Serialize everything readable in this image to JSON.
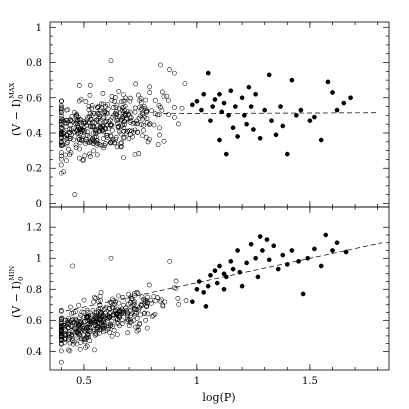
{
  "chart_data": [
    {
      "type": "scatter",
      "panel": "top",
      "ylabel_main": "(V − I)",
      "ylabel_sub": "0",
      "ylabel_sup": "MAX",
      "xlim": [
        0.35,
        1.85
      ],
      "ylim": [
        -0.02,
        1.03
      ],
      "yticks": [
        0,
        0.2,
        0.4,
        0.6,
        0.8,
        1
      ],
      "yticklabels": [
        "0",
        "0.2",
        "0.4",
        "0.6",
        "0.8",
        "1"
      ],
      "xticks": [
        0.5,
        1,
        1.5
      ],
      "fit_line": {
        "x": [
          0.85,
          1.8
        ],
        "y": [
          0.51,
          0.515
        ]
      },
      "series": [
        {
          "marker": "open-circle",
          "cluster": {
            "x_mean": 0.57,
            "x_sd": 0.13,
            "x_min": 0.4,
            "x_max": 0.98,
            "y_base": 0.4,
            "y_slope": 0.25,
            "y_sd": 0.08,
            "count": 420,
            "seed": 11
          },
          "extra_points": [
            {
              "x": 0.62,
              "y": 0.81
            },
            {
              "x": 0.46,
              "y": 0.05
            },
            {
              "x": 0.41,
              "y": 0.18
            },
            {
              "x": 0.48,
              "y": 0.67
            },
            {
              "x": 0.9,
              "y": 0.74
            }
          ]
        },
        {
          "marker": "filled-circle",
          "points": [
            {
              "x": 0.98,
              "y": 0.56
            },
            {
              "x": 1.0,
              "y": 0.58
            },
            {
              "x": 1.02,
              "y": 0.53
            },
            {
              "x": 1.03,
              "y": 0.62
            },
            {
              "x": 1.05,
              "y": 0.74
            },
            {
              "x": 1.06,
              "y": 0.47
            },
            {
              "x": 1.07,
              "y": 0.55
            },
            {
              "x": 1.08,
              "y": 0.59
            },
            {
              "x": 1.1,
              "y": 0.36
            },
            {
              "x": 1.11,
              "y": 0.52
            },
            {
              "x": 1.12,
              "y": 0.57
            },
            {
              "x": 1.13,
              "y": 0.28
            },
            {
              "x": 1.14,
              "y": 0.5
            },
            {
              "x": 1.15,
              "y": 0.64
            },
            {
              "x": 1.16,
              "y": 0.43
            },
            {
              "x": 1.17,
              "y": 0.55
            },
            {
              "x": 1.18,
              "y": 0.38
            },
            {
              "x": 1.2,
              "y": 0.6
            },
            {
              "x": 1.21,
              "y": 0.5
            },
            {
              "x": 1.22,
              "y": 0.45
            },
            {
              "x": 1.24,
              "y": 0.55
            },
            {
              "x": 1.25,
              "y": 0.42
            },
            {
              "x": 1.26,
              "y": 0.62
            },
            {
              "x": 1.28,
              "y": 0.37
            },
            {
              "x": 1.3,
              "y": 0.53
            },
            {
              "x": 1.32,
              "y": 0.73
            },
            {
              "x": 1.33,
              "y": 0.47
            },
            {
              "x": 1.35,
              "y": 0.39
            },
            {
              "x": 1.37,
              "y": 0.55
            },
            {
              "x": 1.4,
              "y": 0.28
            },
            {
              "x": 1.42,
              "y": 0.7
            },
            {
              "x": 1.44,
              "y": 0.5
            },
            {
              "x": 1.46,
              "y": 0.53
            },
            {
              "x": 1.5,
              "y": 0.47
            },
            {
              "x": 1.52,
              "y": 0.49
            },
            {
              "x": 1.55,
              "y": 0.36
            },
            {
              "x": 1.58,
              "y": 0.69
            },
            {
              "x": 1.6,
              "y": 0.63
            },
            {
              "x": 1.62,
              "y": 0.53
            },
            {
              "x": 1.65,
              "y": 0.57
            },
            {
              "x": 1.68,
              "y": 0.6
            },
            {
              "x": 1.1,
              "y": 0.62
            },
            {
              "x": 1.23,
              "y": 0.66
            },
            {
              "x": 1.38,
              "y": 0.44
            }
          ]
        }
      ]
    },
    {
      "type": "scatter",
      "panel": "bottom",
      "ylabel_main": "(V − I)",
      "ylabel_sub": "0",
      "ylabel_sup": "MIN",
      "xlim": [
        0.35,
        1.85
      ],
      "ylim": [
        0.28,
        1.33
      ],
      "yticks": [
        0.4,
        0.6,
        0.8,
        1,
        1.2
      ],
      "yticklabels": [
        "0.4",
        "0.6",
        "0.8",
        "1",
        "1.2"
      ],
      "xticks": [
        0.5,
        1,
        1.5
      ],
      "xticklabels": [
        "0.5",
        "1",
        "1.5"
      ],
      "xlabel": "log(P)",
      "fit_line": {
        "x": [
          0.42,
          1.82
        ],
        "y": [
          0.66,
          1.1
        ]
      },
      "series": [
        {
          "marker": "open-circle",
          "cluster": {
            "x_mean": 0.57,
            "x_sd": 0.13,
            "x_min": 0.4,
            "x_max": 0.98,
            "y_base": 0.53,
            "y_slope": 0.43,
            "y_sd": 0.06,
            "count": 420,
            "seed": 29
          },
          "extra_points": [
            {
              "x": 0.62,
              "y": 1.0
            },
            {
              "x": 0.88,
              "y": 0.98
            },
            {
              "x": 0.42,
              "y": 0.48
            },
            {
              "x": 0.45,
              "y": 0.95
            },
            {
              "x": 0.78,
              "y": 0.55
            }
          ]
        },
        {
          "marker": "filled-circle",
          "points": [
            {
              "x": 0.98,
              "y": 0.72
            },
            {
              "x": 1.0,
              "y": 0.8
            },
            {
              "x": 1.01,
              "y": 0.85
            },
            {
              "x": 1.03,
              "y": 0.78
            },
            {
              "x": 1.04,
              "y": 0.69
            },
            {
              "x": 1.05,
              "y": 0.82
            },
            {
              "x": 1.06,
              "y": 0.89
            },
            {
              "x": 1.08,
              "y": 0.92
            },
            {
              "x": 1.09,
              "y": 0.84
            },
            {
              "x": 1.1,
              "y": 0.95
            },
            {
              "x": 1.12,
              "y": 0.9
            },
            {
              "x": 1.13,
              "y": 0.88
            },
            {
              "x": 1.15,
              "y": 0.98
            },
            {
              "x": 1.16,
              "y": 0.93
            },
            {
              "x": 1.18,
              "y": 1.05
            },
            {
              "x": 1.19,
              "y": 0.91
            },
            {
              "x": 1.2,
              "y": 0.82
            },
            {
              "x": 1.22,
              "y": 0.97
            },
            {
              "x": 1.24,
              "y": 1.09
            },
            {
              "x": 1.26,
              "y": 1.0
            },
            {
              "x": 1.28,
              "y": 1.14
            },
            {
              "x": 1.29,
              "y": 1.05
            },
            {
              "x": 1.31,
              "y": 1.12
            },
            {
              "x": 1.32,
              "y": 0.99
            },
            {
              "x": 1.34,
              "y": 1.08
            },
            {
              "x": 1.36,
              "y": 0.93
            },
            {
              "x": 1.38,
              "y": 1.02
            },
            {
              "x": 1.4,
              "y": 0.96
            },
            {
              "x": 1.42,
              "y": 1.05
            },
            {
              "x": 1.45,
              "y": 0.98
            },
            {
              "x": 1.47,
              "y": 0.77
            },
            {
              "x": 1.49,
              "y": 1.0
            },
            {
              "x": 1.52,
              "y": 1.06
            },
            {
              "x": 1.55,
              "y": 0.95
            },
            {
              "x": 1.57,
              "y": 1.15
            },
            {
              "x": 1.6,
              "y": 1.05
            },
            {
              "x": 1.62,
              "y": 1.1
            },
            {
              "x": 1.66,
              "y": 1.04
            },
            {
              "x": 1.12,
              "y": 0.8
            },
            {
              "x": 1.27,
              "y": 0.88
            }
          ]
        }
      ]
    }
  ]
}
